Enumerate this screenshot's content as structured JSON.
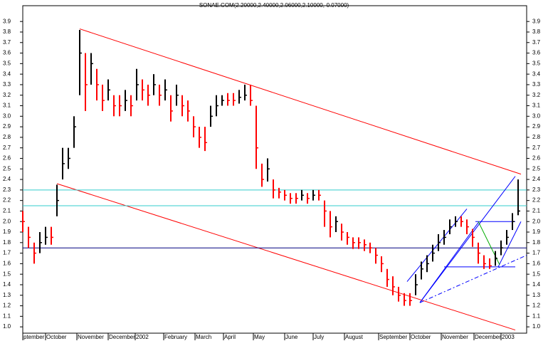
{
  "chart_data": {
    "type": "ohlc",
    "title": "SONAE.COM(2.20000,2.40000,2.06000,2.10000,-0.07000)",
    "xlim": [
      0,
      354
    ],
    "ylim": [
      0.94,
      4.05
    ],
    "yticks": [
      {
        "value": 1.0,
        "label": "1.0"
      },
      1.1,
      1.2,
      1.3,
      1.4,
      1.5,
      1.6,
      1.7,
      1.8,
      1.9,
      {
        "value": 2.0,
        "label": "2.0"
      },
      2.1,
      2.2,
      2.3,
      2.4,
      2.5,
      2.6,
      2.7,
      2.8,
      2.9,
      {
        "value": 3.0,
        "label": "3.0"
      },
      3.1,
      3.2,
      3.3,
      3.4,
      3.5,
      3.6,
      3.7,
      3.8,
      3.9
    ],
    "xticks": [
      {
        "value": 0,
        "label": "ptember"
      },
      {
        "value": 16,
        "label": "October"
      },
      {
        "value": 38,
        "label": "November"
      },
      {
        "value": 60,
        "label": "December"
      },
      {
        "value": 79,
        "label": "2002"
      },
      {
        "value": 99,
        "label": "February"
      },
      {
        "value": 121,
        "label": "March"
      },
      {
        "value": 141,
        "label": "April"
      },
      {
        "value": 162,
        "label": "May"
      },
      {
        "value": 184,
        "label": "June"
      },
      {
        "value": 204,
        "label": "July"
      },
      {
        "value": 226,
        "label": "August"
      },
      {
        "value": 250,
        "label": "September"
      },
      {
        "value": 272,
        "label": "October"
      },
      {
        "value": 294,
        "label": "November"
      },
      {
        "value": 317,
        "label": "December"
      },
      {
        "value": 336,
        "label": "2003"
      }
    ],
    "color": "#ff0000",
    "x": [
      0,
      4,
      8,
      12,
      16,
      20,
      24,
      28,
      32,
      36,
      40,
      44,
      48,
      52,
      56,
      60,
      64,
      68,
      72,
      76,
      80,
      84,
      88,
      92,
      96,
      100,
      104,
      108,
      112,
      116,
      120,
      124,
      128,
      132,
      136,
      140,
      144,
      148,
      152,
      156,
      160,
      164,
      168,
      172,
      176,
      180,
      184,
      188,
      192,
      196,
      200,
      204,
      208,
      212,
      216,
      220,
      224,
      228,
      232,
      236,
      240,
      244,
      248,
      252,
      256,
      260,
      264,
      268,
      272,
      276,
      280,
      284,
      288,
      292,
      296,
      300,
      304,
      308,
      312,
      316,
      320,
      324,
      328,
      332,
      336,
      340,
      344,
      348
    ],
    "high": [
      2.1,
      1.95,
      1.8,
      1.9,
      1.95,
      1.95,
      2.35,
      2.7,
      2.7,
      3.0,
      3.82,
      3.6,
      3.6,
      3.45,
      3.3,
      3.35,
      3.2,
      3.2,
      3.25,
      3.2,
      3.45,
      3.35,
      3.3,
      3.4,
      3.3,
      3.35,
      3.2,
      3.3,
      3.2,
      3.15,
      3.0,
      2.9,
      2.9,
      3.1,
      3.2,
      3.2,
      3.22,
      3.22,
      3.25,
      3.3,
      3.3,
      3.1,
      2.55,
      2.6,
      2.4,
      2.32,
      2.3,
      2.27,
      2.27,
      2.3,
      2.27,
      2.3,
      2.3,
      2.2,
      2.1,
      2.05,
      1.98,
      1.9,
      1.85,
      1.85,
      1.83,
      1.8,
      1.75,
      1.67,
      1.55,
      1.48,
      1.38,
      1.32,
      1.32,
      1.5,
      1.62,
      1.68,
      1.78,
      1.88,
      1.92,
      2.02,
      2.05,
      2.05,
      2.02,
      1.93,
      1.8,
      1.68,
      1.65,
      1.72,
      1.82,
      1.92,
      2.08,
      2.4
    ],
    "low": [
      1.9,
      1.75,
      1.6,
      1.7,
      1.78,
      1.78,
      2.05,
      2.4,
      2.5,
      2.7,
      3.2,
      3.05,
      3.3,
      3.15,
      3.05,
      3.15,
      3.0,
      3.0,
      3.05,
      3.0,
      3.15,
      3.15,
      3.1,
      3.2,
      3.1,
      3.15,
      2.95,
      3.1,
      3.0,
      2.95,
      2.8,
      2.7,
      2.67,
      2.9,
      3.0,
      3.1,
      3.1,
      3.1,
      3.12,
      3.15,
      3.1,
      2.5,
      2.33,
      2.38,
      2.22,
      2.22,
      2.2,
      2.17,
      2.17,
      2.2,
      2.17,
      2.2,
      2.2,
      1.95,
      1.85,
      1.9,
      1.82,
      1.78,
      1.74,
      1.74,
      1.72,
      1.7,
      1.6,
      1.52,
      1.38,
      1.3,
      1.24,
      1.2,
      1.2,
      1.3,
      1.45,
      1.52,
      1.62,
      1.72,
      1.78,
      1.88,
      1.95,
      1.95,
      1.88,
      1.76,
      1.6,
      1.55,
      1.55,
      1.58,
      1.68,
      1.78,
      1.92,
      2.06
    ],
    "close": [
      2.0,
      1.85,
      1.7,
      1.8,
      1.85,
      1.85,
      2.2,
      2.55,
      2.6,
      2.9,
      3.6,
      3.3,
      3.5,
      3.3,
      3.15,
      3.25,
      3.1,
      3.1,
      3.15,
      3.1,
      3.3,
      3.25,
      3.2,
      3.3,
      3.2,
      3.25,
      3.05,
      3.2,
      3.1,
      3.05,
      2.9,
      2.8,
      2.75,
      3.0,
      3.1,
      3.15,
      3.15,
      3.15,
      3.18,
      3.2,
      3.15,
      2.7,
      2.4,
      2.5,
      2.3,
      2.28,
      2.25,
      2.22,
      2.22,
      2.25,
      2.22,
      2.25,
      2.25,
      2.1,
      1.95,
      2.0,
      1.9,
      1.85,
      1.8,
      1.8,
      1.78,
      1.75,
      1.68,
      1.6,
      1.45,
      1.38,
      1.3,
      1.25,
      1.25,
      1.4,
      1.55,
      1.6,
      1.7,
      1.8,
      1.85,
      1.95,
      2.0,
      2.0,
      1.95,
      1.85,
      1.7,
      1.6,
      1.58,
      1.65,
      1.75,
      1.85,
      2.0,
      2.1
    ],
    "lines": [
      {
        "color": "#ff0000",
        "x": [
          40,
          350
        ],
        "y": [
          3.83,
          2.45
        ]
      },
      {
        "color": "#ff0000",
        "x": [
          24,
          346
        ],
        "y": [
          2.36,
          0.97
        ]
      },
      {
        "color": "#33cccc",
        "x": [
          0,
          354
        ],
        "y": [
          2.3,
          2.3
        ]
      },
      {
        "color": "#33cccc",
        "x": [
          0,
          354
        ],
        "y": [
          2.15,
          2.15
        ]
      },
      {
        "color": "#000080",
        "x": [
          0,
          354
        ],
        "y": [
          1.75,
          1.75
        ]
      },
      {
        "color": "#0000ff",
        "x": [
          270,
          312
        ],
        "y": [
          1.43,
          2.12
        ]
      },
      {
        "color": "#0000ff",
        "x": [
          279,
          320
        ],
        "y": [
          1.23,
          1.99
        ]
      },
      {
        "color": "#0000ff",
        "x": [
          279,
          346
        ],
        "y": [
          1.23,
          2.43
        ]
      },
      {
        "color": "#0000ff",
        "x": [
          334,
          350
        ],
        "y": [
          1.57,
          2.0
        ]
      },
      {
        "color": "#0000ff",
        "x": [
          296,
          346
        ],
        "y": [
          1.57,
          1.57
        ]
      },
      {
        "color": "#0000ff",
        "x": [
          318,
          346
        ],
        "y": [
          2.0,
          2.0
        ]
      },
      {
        "color": "#00aa00",
        "x": [
          320,
          335
        ],
        "y": [
          2.0,
          1.59
        ]
      },
      {
        "color": "#0000ff",
        "dashed": true,
        "x": [
          279,
          354
        ],
        "y": [
          1.23,
          1.68
        ]
      }
    ]
  }
}
